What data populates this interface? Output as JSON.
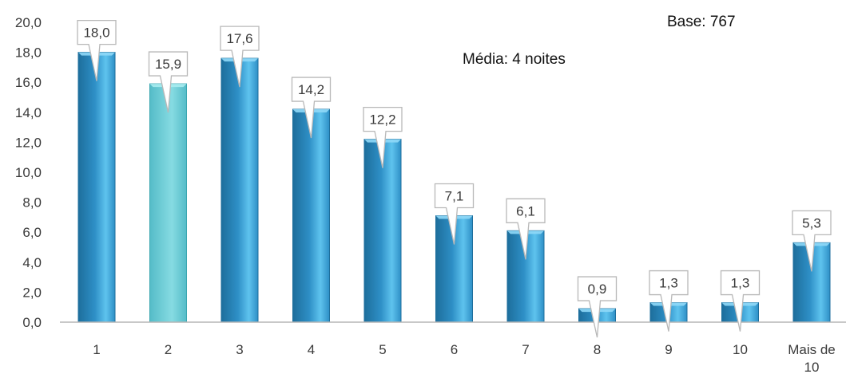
{
  "chart_data": {
    "type": "bar",
    "categories": [
      "1",
      "2",
      "3",
      "4",
      "5",
      "6",
      "7",
      "8",
      "9",
      "10",
      "Mais de 10"
    ],
    "category_display": [
      [
        "1"
      ],
      [
        "2"
      ],
      [
        "3"
      ],
      [
        "4"
      ],
      [
        "5"
      ],
      [
        "6"
      ],
      [
        "7"
      ],
      [
        "8"
      ],
      [
        "9"
      ],
      [
        "10"
      ],
      [
        "Mais de",
        "10"
      ]
    ],
    "values": [
      18.0,
      15.9,
      17.6,
      14.2,
      12.2,
      7.1,
      6.1,
      0.9,
      1.3,
      1.3,
      5.3
    ],
    "value_labels": [
      "18,0",
      "15,9",
      "17,6",
      "14,2",
      "12,2",
      "7,1",
      "6,1",
      "0,9",
      "1,3",
      "1,3",
      "5,3"
    ],
    "yticks": [
      "0,0",
      "2,0",
      "4,0",
      "6,0",
      "8,0",
      "10,0",
      "12,0",
      "14,0",
      "16,0",
      "18,0",
      "20,0"
    ],
    "ylim": [
      0,
      20
    ],
    "ystep": 2,
    "grid": false,
    "colors": {
      "bar": "#2e8fc6",
      "bar_light": "#5ec3ee",
      "bar_dark": "#1d6e9c",
      "bar_highlight": "#55bcc8",
      "bar_highlight_light": "#86dbe2",
      "axis": "#b5b5b5",
      "callout_border": "#b8b8b8"
    },
    "highlight_index": 1,
    "annotations": {
      "base": "Base: 767",
      "media": "Média: 4 noites"
    }
  }
}
